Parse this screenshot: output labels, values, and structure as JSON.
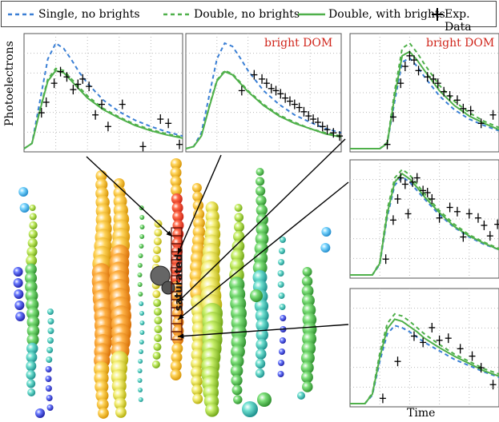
{
  "legend": {
    "items": [
      {
        "label": "Single, no brights",
        "style": "dashed",
        "color": "#3a7fd5"
      },
      {
        "label": "Double, no brights",
        "style": "dashed",
        "color": "#4fb04a"
      },
      {
        "label": "Double, with brights",
        "style": "solid",
        "color": "#4fb04a"
      },
      {
        "label": "Exp. Data",
        "style": "cross",
        "color": "#000000"
      }
    ]
  },
  "ylabel": "Photoelectrons",
  "xlabel": "Time",
  "bright_label": "bright DOM",
  "saturated_label": "saturated",
  "colors": {
    "single": "#3a7fd5",
    "double": "#4fb04a",
    "bright_text": "#d0241a",
    "data": "#000000"
  },
  "chart_data": [
    {
      "type": "line",
      "panel": "top-left",
      "bright": false,
      "x": [
        0.0,
        0.05,
        0.1,
        0.15,
        0.2,
        0.25,
        0.3,
        0.35,
        0.4,
        0.5,
        0.6,
        0.7,
        0.8,
        0.9,
        1.0
      ],
      "series": [
        {
          "name": "Single, no brights",
          "values": [
            0.0,
            0.05,
            0.45,
            0.85,
            1.0,
            0.95,
            0.84,
            0.72,
            0.62,
            0.46,
            0.35,
            0.27,
            0.21,
            0.16,
            0.12
          ]
        },
        {
          "name": "Double, no brights",
          "values": [
            0.0,
            0.05,
            0.37,
            0.66,
            0.76,
            0.74,
            0.66,
            0.58,
            0.5,
            0.38,
            0.3,
            0.23,
            0.18,
            0.14,
            0.11
          ]
        },
        {
          "name": "Double, with brights",
          "values": [
            0.0,
            0.05,
            0.36,
            0.64,
            0.74,
            0.72,
            0.64,
            0.56,
            0.48,
            0.37,
            0.29,
            0.22,
            0.17,
            0.13,
            0.1
          ]
        }
      ],
      "data_points": [
        {
          "x": 0.11,
          "y": 0.34
        },
        {
          "x": 0.14,
          "y": 0.44
        },
        {
          "x": 0.19,
          "y": 0.62
        },
        {
          "x": 0.23,
          "y": 0.73
        },
        {
          "x": 0.27,
          "y": 0.68
        },
        {
          "x": 0.31,
          "y": 0.56
        },
        {
          "x": 0.34,
          "y": 0.61
        },
        {
          "x": 0.37,
          "y": 0.66
        },
        {
          "x": 0.41,
          "y": 0.59
        },
        {
          "x": 0.45,
          "y": 0.32
        },
        {
          "x": 0.49,
          "y": 0.42
        },
        {
          "x": 0.53,
          "y": 0.21
        },
        {
          "x": 0.62,
          "y": 0.42
        },
        {
          "x": 0.75,
          "y": 0.02
        },
        {
          "x": 0.86,
          "y": 0.28
        },
        {
          "x": 0.91,
          "y": 0.24
        },
        {
          "x": 0.98,
          "y": 0.04
        }
      ]
    },
    {
      "type": "line",
      "panel": "top-middle",
      "bright": true,
      "x": [
        0.0,
        0.05,
        0.1,
        0.15,
        0.2,
        0.25,
        0.3,
        0.35,
        0.4,
        0.5,
        0.6,
        0.7,
        0.8,
        0.9,
        1.0
      ],
      "series": [
        {
          "name": "Single, no brights",
          "values": [
            0.0,
            0.02,
            0.15,
            0.5,
            0.85,
            1.0,
            0.97,
            0.86,
            0.74,
            0.55,
            0.42,
            0.32,
            0.25,
            0.19,
            0.15
          ]
        },
        {
          "name": "Double, no brights",
          "values": [
            0.0,
            0.02,
            0.12,
            0.4,
            0.65,
            0.74,
            0.71,
            0.63,
            0.55,
            0.42,
            0.32,
            0.25,
            0.19,
            0.15,
            0.12
          ]
        },
        {
          "name": "Double, with brights",
          "values": [
            0.0,
            0.02,
            0.12,
            0.39,
            0.64,
            0.73,
            0.7,
            0.62,
            0.54,
            0.41,
            0.31,
            0.24,
            0.19,
            0.14,
            0.11
          ]
        }
      ],
      "data_points": [
        {
          "x": 0.36,
          "y": 0.55
        },
        {
          "x": 0.44,
          "y": 0.7
        },
        {
          "x": 0.49,
          "y": 0.66
        },
        {
          "x": 0.52,
          "y": 0.62
        },
        {
          "x": 0.55,
          "y": 0.57
        },
        {
          "x": 0.58,
          "y": 0.55
        },
        {
          "x": 0.61,
          "y": 0.52
        },
        {
          "x": 0.64,
          "y": 0.48
        },
        {
          "x": 0.67,
          "y": 0.45
        },
        {
          "x": 0.7,
          "y": 0.42
        },
        {
          "x": 0.73,
          "y": 0.39
        },
        {
          "x": 0.76,
          "y": 0.35
        },
        {
          "x": 0.79,
          "y": 0.31
        },
        {
          "x": 0.82,
          "y": 0.28
        },
        {
          "x": 0.85,
          "y": 0.25
        },
        {
          "x": 0.88,
          "y": 0.21
        },
        {
          "x": 0.91,
          "y": 0.18
        },
        {
          "x": 0.95,
          "y": 0.15
        },
        {
          "x": 0.99,
          "y": 0.12
        }
      ]
    },
    {
      "type": "line",
      "panel": "top-right",
      "bright": true,
      "x": [
        0.0,
        0.2,
        0.25,
        0.3,
        0.35,
        0.4,
        0.45,
        0.5,
        0.6,
        0.7,
        0.8,
        0.9,
        1.0
      ],
      "series": [
        {
          "name": "Single, no brights",
          "values": [
            0.0,
            0.0,
            0.05,
            0.45,
            0.82,
            0.86,
            0.78,
            0.68,
            0.5,
            0.37,
            0.28,
            0.22,
            0.17
          ]
        },
        {
          "name": "Double, no brights",
          "values": [
            0.0,
            0.0,
            0.06,
            0.55,
            0.95,
            1.0,
            0.91,
            0.8,
            0.6,
            0.45,
            0.34,
            0.26,
            0.2
          ]
        },
        {
          "name": "Double, with brights",
          "values": [
            0.0,
            0.0,
            0.05,
            0.5,
            0.88,
            0.92,
            0.84,
            0.74,
            0.55,
            0.41,
            0.31,
            0.24,
            0.18
          ]
        }
      ],
      "data_points": [
        {
          "x": 0.25,
          "y": 0.04
        },
        {
          "x": 0.29,
          "y": 0.3
        },
        {
          "x": 0.34,
          "y": 0.62
        },
        {
          "x": 0.37,
          "y": 0.78
        },
        {
          "x": 0.4,
          "y": 0.88
        },
        {
          "x": 0.43,
          "y": 0.84
        },
        {
          "x": 0.46,
          "y": 0.74
        },
        {
          "x": 0.52,
          "y": 0.68
        },
        {
          "x": 0.56,
          "y": 0.66
        },
        {
          "x": 0.59,
          "y": 0.62
        },
        {
          "x": 0.63,
          "y": 0.54
        },
        {
          "x": 0.67,
          "y": 0.5
        },
        {
          "x": 0.72,
          "y": 0.46
        },
        {
          "x": 0.76,
          "y": 0.38
        },
        {
          "x": 0.81,
          "y": 0.36
        },
        {
          "x": 0.88,
          "y": 0.24
        },
        {
          "x": 0.96,
          "y": 0.32
        }
      ]
    },
    {
      "type": "line",
      "panel": "middle-right",
      "bright": false,
      "x": [
        0.0,
        0.15,
        0.2,
        0.25,
        0.3,
        0.35,
        0.4,
        0.45,
        0.5,
        0.6,
        0.7,
        0.8,
        0.9,
        1.0
      ],
      "series": [
        {
          "name": "Single, no brights",
          "values": [
            0.0,
            0.0,
            0.1,
            0.55,
            0.85,
            0.93,
            0.88,
            0.8,
            0.72,
            0.57,
            0.45,
            0.36,
            0.29,
            0.24
          ]
        },
        {
          "name": "Double, no brights",
          "values": [
            0.0,
            0.0,
            0.12,
            0.62,
            0.92,
            1.0,
            0.95,
            0.86,
            0.77,
            0.61,
            0.48,
            0.38,
            0.31,
            0.25
          ]
        },
        {
          "name": "Double, with brights",
          "values": [
            0.0,
            0.0,
            0.11,
            0.58,
            0.88,
            0.96,
            0.91,
            0.83,
            0.74,
            0.59,
            0.46,
            0.37,
            0.3,
            0.24
          ]
        }
      ],
      "data_points": [
        {
          "x": 0.24,
          "y": 0.15
        },
        {
          "x": 0.29,
          "y": 0.52
        },
        {
          "x": 0.32,
          "y": 0.72
        },
        {
          "x": 0.34,
          "y": 0.92
        },
        {
          "x": 0.37,
          "y": 0.86
        },
        {
          "x": 0.39,
          "y": 0.58
        },
        {
          "x": 0.42,
          "y": 0.88
        },
        {
          "x": 0.45,
          "y": 0.92
        },
        {
          "x": 0.49,
          "y": 0.8
        },
        {
          "x": 0.52,
          "y": 0.78
        },
        {
          "x": 0.55,
          "y": 0.72
        },
        {
          "x": 0.6,
          "y": 0.54
        },
        {
          "x": 0.67,
          "y": 0.64
        },
        {
          "x": 0.72,
          "y": 0.6
        },
        {
          "x": 0.76,
          "y": 0.36
        },
        {
          "x": 0.8,
          "y": 0.58
        },
        {
          "x": 0.86,
          "y": 0.54
        },
        {
          "x": 0.9,
          "y": 0.47
        },
        {
          "x": 0.94,
          "y": 0.37
        },
        {
          "x": 0.99,
          "y": 0.48
        }
      ]
    },
    {
      "type": "line",
      "panel": "bottom-right",
      "bright": false,
      "x": [
        0.0,
        0.1,
        0.15,
        0.2,
        0.25,
        0.3,
        0.35,
        0.4,
        0.45,
        0.5,
        0.6,
        0.7,
        0.8,
        0.9,
        1.0
      ],
      "series": [
        {
          "name": "Single, no brights",
          "values": [
            0.0,
            0.0,
            0.08,
            0.4,
            0.66,
            0.74,
            0.72,
            0.68,
            0.63,
            0.58,
            0.5,
            0.42,
            0.36,
            0.3,
            0.25
          ]
        },
        {
          "name": "Double, no brights",
          "values": [
            0.0,
            0.0,
            0.1,
            0.48,
            0.76,
            0.85,
            0.83,
            0.78,
            0.72,
            0.66,
            0.56,
            0.47,
            0.4,
            0.33,
            0.28
          ]
        },
        {
          "name": "Double, with brights",
          "values": [
            0.0,
            0.0,
            0.09,
            0.44,
            0.71,
            0.8,
            0.78,
            0.73,
            0.68,
            0.62,
            0.53,
            0.45,
            0.38,
            0.31,
            0.26
          ]
        }
      ],
      "data_points": [
        {
          "x": 0.22,
          "y": 0.05
        },
        {
          "x": 0.32,
          "y": 0.4
        },
        {
          "x": 0.43,
          "y": 0.64
        },
        {
          "x": 0.49,
          "y": 0.58
        },
        {
          "x": 0.55,
          "y": 0.72
        },
        {
          "x": 0.6,
          "y": 0.6
        },
        {
          "x": 0.66,
          "y": 0.62
        },
        {
          "x": 0.74,
          "y": 0.52
        },
        {
          "x": 0.82,
          "y": 0.45
        },
        {
          "x": 0.88,
          "y": 0.34
        },
        {
          "x": 0.96,
          "y": 0.18
        }
      ]
    }
  ]
}
